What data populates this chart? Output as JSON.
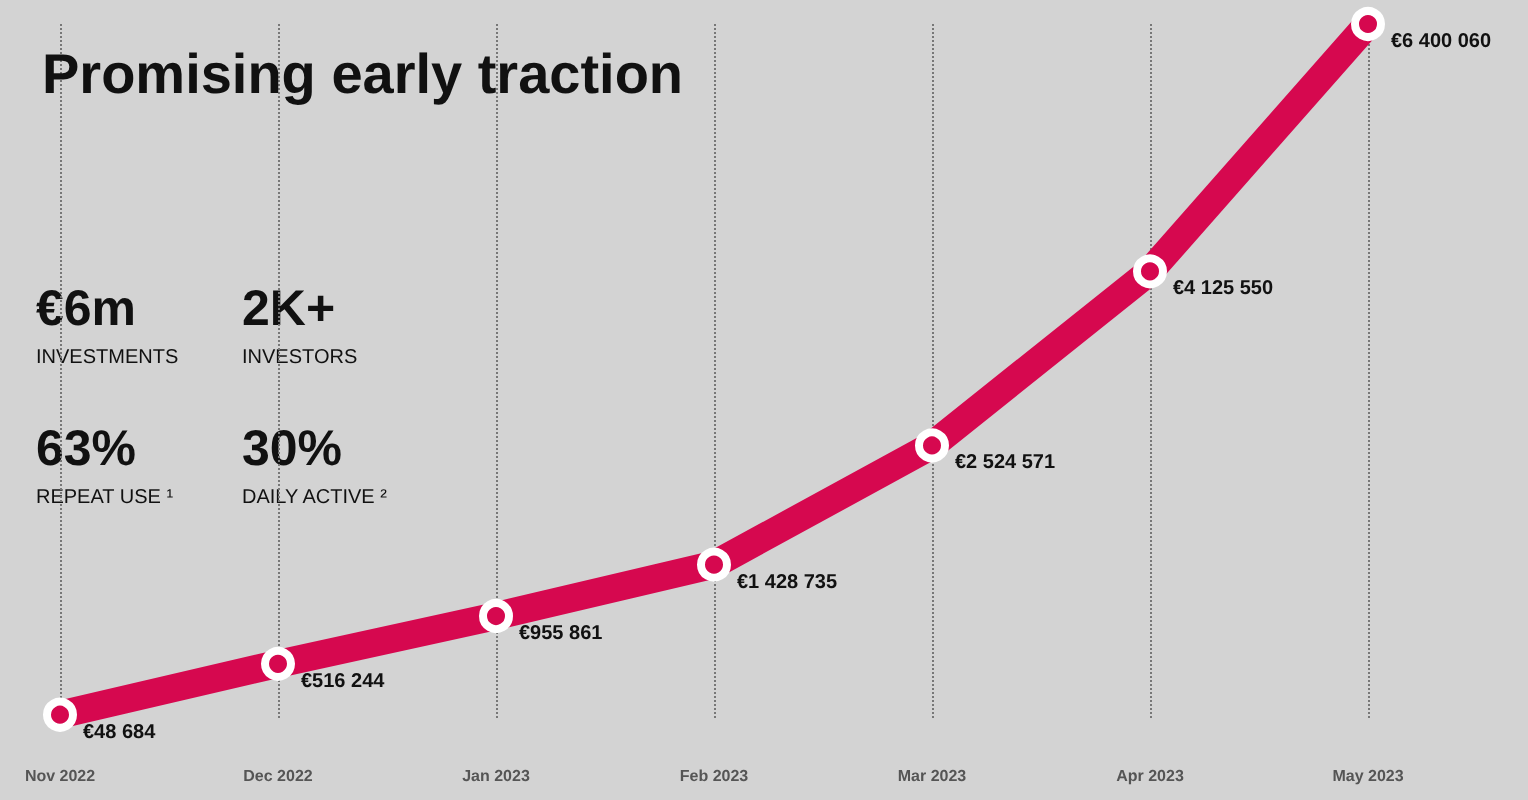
{
  "chart_data": {
    "type": "line",
    "title": "Promising early traction",
    "categories": [
      "Nov 2022",
      "Dec 2022",
      "Jan 2023",
      "Feb 2023",
      "Mar 2023",
      "Apr 2023",
      "May 2023"
    ],
    "series": [
      {
        "color": "#d6084f",
        "values": [
          48684,
          516244,
          955861,
          1428735,
          2524571,
          4125550,
          6400060
        ],
        "value_labels": [
          "€48 684",
          "€516 244",
          "€955 861",
          "€1 428 735",
          "€2 524 571",
          "€4 125 550",
          "€6 400 060"
        ]
      }
    ],
    "annotations": [
      "€6m",
      "INVESTMENTS",
      "2K+",
      "INVESTORS",
      "63%",
      "REPEAT USE ¹",
      "30%",
      "DAILY ACTIVE ²"
    ],
    "grid": "x",
    "marker": "circle",
    "line_style": "solid"
  }
}
